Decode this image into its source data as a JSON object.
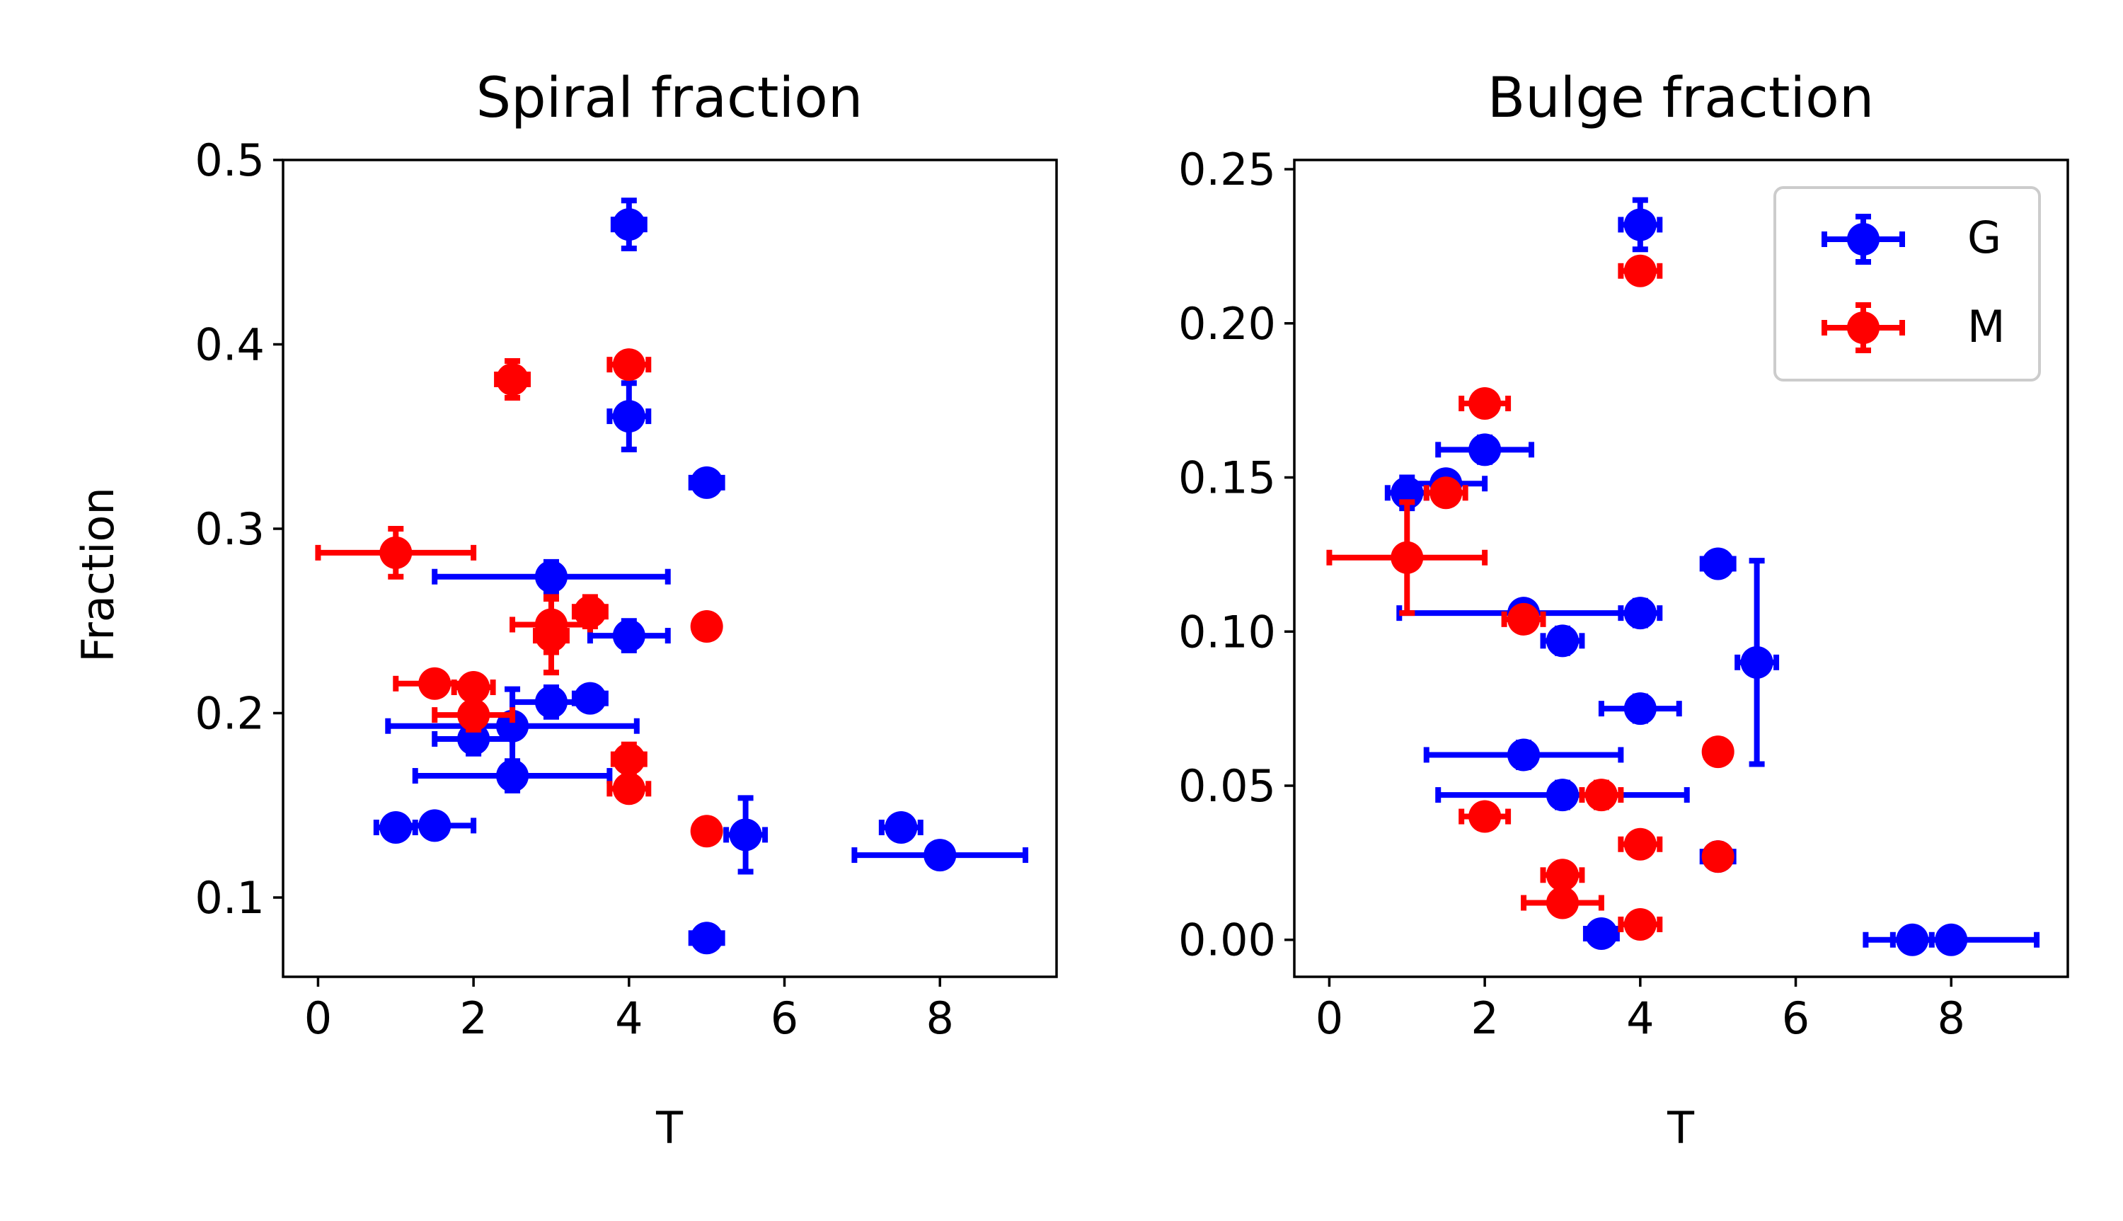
{
  "colors": {
    "G": "#0000ff",
    "M": "#ff0000"
  },
  "legend": {
    "entries": [
      {
        "name": "G",
        "color": "#0000ff"
      },
      {
        "name": "M",
        "color": "#ff0000"
      }
    ],
    "placement": "upper-right"
  },
  "chart_data": [
    {
      "type": "scatter",
      "title": "Spiral fraction",
      "xlabel": "T",
      "ylabel": "Fraction",
      "xlim": [
        -0.45,
        9.5
      ],
      "ylim": [
        0.057,
        0.5
      ],
      "xticks": [
        "0",
        "2",
        "4",
        "6",
        "8"
      ],
      "yticks": [
        "0.1",
        "0.2",
        "0.3",
        "0.4",
        "0.5"
      ],
      "grid": false,
      "series": [
        {
          "name": "G",
          "points": [
            {
              "x": 4.0,
              "y": 0.465,
              "xerr": 0.2,
              "yerr": 0.013
            },
            {
              "x": 4.0,
              "y": 0.361,
              "xerr": 0.25,
              "yerr": 0.018
            },
            {
              "x": 5.0,
              "y": 0.325,
              "xerr": 0.2,
              "yerr": 0.005
            },
            {
              "x": 3.0,
              "y": 0.274,
              "xerr": 1.5,
              "yerr": 0.008
            },
            {
              "x": 4.0,
              "y": 0.242,
              "xerr": 0.5,
              "yerr": 0.008
            },
            {
              "x": 3.0,
              "y": 0.206,
              "xerr": 0.5,
              "yerr": 0.008
            },
            {
              "x": 3.5,
              "y": 0.208,
              "xerr": 0.2,
              "yerr": 0.005
            },
            {
              "x": 2.5,
              "y": 0.193,
              "xerr": 1.6,
              "yerr": 0.02
            },
            {
              "x": 2.0,
              "y": 0.186,
              "xerr": 0.5,
              "yerr": 0.008
            },
            {
              "x": 2.5,
              "y": 0.166,
              "xerr": 1.25,
              "yerr": 0.008
            },
            {
              "x": 1.0,
              "y": 0.138,
              "xerr": 0.25,
              "yerr": 0.005
            },
            {
              "x": 1.5,
              "y": 0.139,
              "xerr": 0.5,
              "yerr": 0.005
            },
            {
              "x": 5.5,
              "y": 0.134,
              "xerr": 0.25,
              "yerr": 0.02
            },
            {
              "x": 7.5,
              "y": 0.138,
              "xerr": 0.25,
              "yerr": 0.005
            },
            {
              "x": 8.0,
              "y": 0.123,
              "xerr": 1.1,
              "yerr": 0.005
            },
            {
              "x": 5.0,
              "y": 0.078,
              "xerr": 0.2,
              "yerr": 0.005
            }
          ]
        },
        {
          "name": "M",
          "points": [
            {
              "x": 4.0,
              "y": 0.389,
              "xerr": 0.25,
              "yerr": 0.005
            },
            {
              "x": 2.5,
              "y": 0.381,
              "xerr": 0.2,
              "yerr": 0.01
            },
            {
              "x": 1.0,
              "y": 0.287,
              "xerr": 1.0,
              "yerr": 0.013
            },
            {
              "x": 3.0,
              "y": 0.248,
              "xerr": 0.5,
              "yerr": 0.015
            },
            {
              "x": 3.5,
              "y": 0.255,
              "xerr": 0.2,
              "yerr": 0.008
            },
            {
              "x": 3.0,
              "y": 0.242,
              "xerr": 0.2,
              "yerr": 0.02
            },
            {
              "x": 5.0,
              "y": 0.247,
              "xerr": 0.15,
              "yerr": 0.005
            },
            {
              "x": 1.5,
              "y": 0.216,
              "xerr": 0.5,
              "yerr": 0.005
            },
            {
              "x": 2.0,
              "y": 0.214,
              "xerr": 0.25,
              "yerr": 0.005
            },
            {
              "x": 2.0,
              "y": 0.199,
              "xerr": 0.5,
              "yerr": 0.008
            },
            {
              "x": 4.0,
              "y": 0.175,
              "xerr": 0.2,
              "yerr": 0.008
            },
            {
              "x": 4.0,
              "y": 0.159,
              "xerr": 0.25,
              "yerr": 0.005
            },
            {
              "x": 5.0,
              "y": 0.136,
              "xerr": 0.15,
              "yerr": 0.005
            }
          ]
        }
      ]
    },
    {
      "type": "scatter",
      "title": "Bulge fraction",
      "xlabel": "T",
      "ylabel": "",
      "xlim": [
        -0.45,
        9.5
      ],
      "ylim": [
        -0.012,
        0.253
      ],
      "xticks": [
        "0",
        "2",
        "4",
        "6",
        "8"
      ],
      "yticks": [
        "0.00",
        "0.05",
        "0.10",
        "0.15",
        "0.20",
        "0.25"
      ],
      "grid": false,
      "series": [
        {
          "name": "G",
          "points": [
            {
              "x": 4.0,
              "y": 0.232,
              "xerr": 0.25,
              "yerr": 0.008
            },
            {
              "x": 2.0,
              "y": 0.159,
              "xerr": 0.6,
              "yerr": 0.004
            },
            {
              "x": 1.5,
              "y": 0.148,
              "xerr": 0.5,
              "yerr": 0.003
            },
            {
              "x": 1.0,
              "y": 0.145,
              "xerr": 0.25,
              "yerr": 0.005
            },
            {
              "x": 5.0,
              "y": 0.122,
              "xerr": 0.2,
              "yerr": 0.003
            },
            {
              "x": 2.5,
              "y": 0.106,
              "xerr": 1.6,
              "yerr": 0.003
            },
            {
              "x": 4.0,
              "y": 0.106,
              "xerr": 0.25,
              "yerr": 0.004
            },
            {
              "x": 3.0,
              "y": 0.097,
              "xerr": 0.25,
              "yerr": 0.004
            },
            {
              "x": 5.5,
              "y": 0.09,
              "xerr": 0.25,
              "yerr": 0.033
            },
            {
              "x": 4.0,
              "y": 0.075,
              "xerr": 0.5,
              "yerr": 0.004
            },
            {
              "x": 2.5,
              "y": 0.06,
              "xerr": 1.25,
              "yerr": 0.004
            },
            {
              "x": 3.0,
              "y": 0.047,
              "xerr": 1.6,
              "yerr": 0.004
            },
            {
              "x": 5.0,
              "y": 0.027,
              "xerr": 0.2,
              "yerr": 0.003
            },
            {
              "x": 3.5,
              "y": 0.002,
              "xerr": 0.2,
              "yerr": 0.003
            },
            {
              "x": 7.5,
              "y": 0.0,
              "xerr": 0.25,
              "yerr": 0.001
            },
            {
              "x": 8.0,
              "y": 0.0,
              "xerr": 1.1,
              "yerr": 0.001
            }
          ]
        },
        {
          "name": "M",
          "points": [
            {
              "x": 4.0,
              "y": 0.217,
              "xerr": 0.25,
              "yerr": 0.003
            },
            {
              "x": 2.0,
              "y": 0.174,
              "xerr": 0.3,
              "yerr": 0.003
            },
            {
              "x": 1.5,
              "y": 0.145,
              "xerr": 0.25,
              "yerr": 0.003
            },
            {
              "x": 1.0,
              "y": 0.124,
              "xerr": 1.0,
              "yerr": 0.018
            },
            {
              "x": 2.5,
              "y": 0.104,
              "xerr": 0.25,
              "yerr": 0.003
            },
            {
              "x": 5.0,
              "y": 0.061,
              "xerr": 0.15,
              "yerr": 0.003
            },
            {
              "x": 3.5,
              "y": 0.047,
              "xerr": 0.25,
              "yerr": 0.004
            },
            {
              "x": 2.0,
              "y": 0.04,
              "xerr": 0.3,
              "yerr": 0.003
            },
            {
              "x": 4.0,
              "y": 0.031,
              "xerr": 0.25,
              "yerr": 0.003
            },
            {
              "x": 5.0,
              "y": 0.027,
              "xerr": 0.15,
              "yerr": 0.003
            },
            {
              "x": 3.0,
              "y": 0.021,
              "xerr": 0.25,
              "yerr": 0.003
            },
            {
              "x": 3.0,
              "y": 0.012,
              "xerr": 0.5,
              "yerr": 0.003
            },
            {
              "x": 4.0,
              "y": 0.005,
              "xerr": 0.25,
              "yerr": 0.003
            }
          ]
        }
      ]
    }
  ]
}
